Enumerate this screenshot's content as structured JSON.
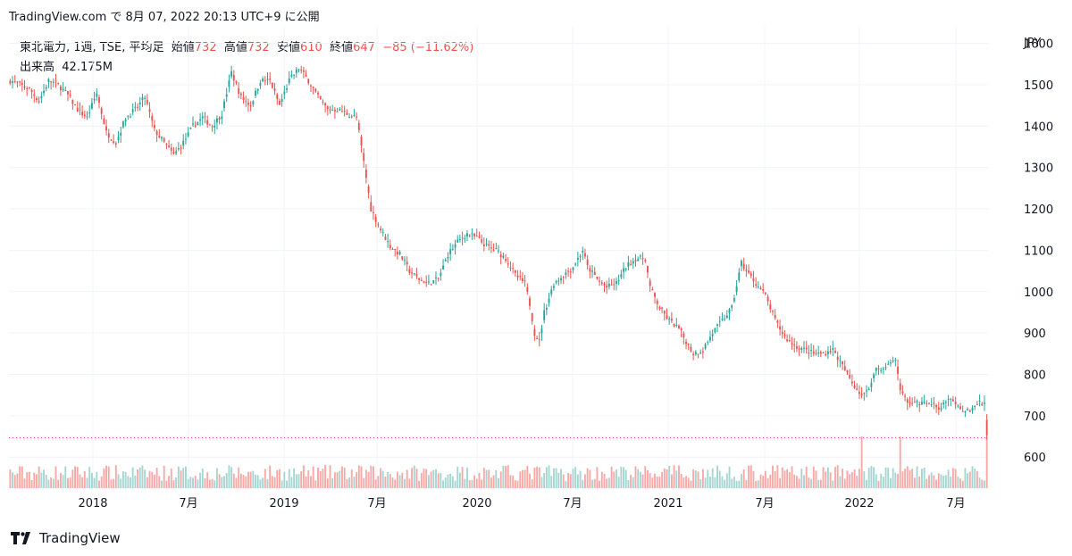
{
  "header": {
    "publish_line": "TradingView.com で 8月 07, 2022 20:13 UTC+9 に公開"
  },
  "legend": {
    "symbol": "東北電力, 1週, TSE, 平均足",
    "open_label": "始値",
    "open": "732",
    "high_label": "高値",
    "high": "732",
    "low_label": "安値",
    "low": "610",
    "close_label": "終値",
    "close": "647",
    "change": "−85 (−11.62%)",
    "volume_label": "出来高",
    "volume": "42.175M"
  },
  "footer": {
    "brand": "TradingView"
  },
  "colors": {
    "up": "#26a69a",
    "down": "#ef5350",
    "vol_up": "#a5d6d2",
    "vol_down": "#f7a9a7",
    "grid": "#f0f3fa",
    "axis_text": "#131722",
    "last_price_line": "#ef5350"
  },
  "chart_data": {
    "type": "candlestick",
    "currency": "JPY",
    "y_ticks": [
      600,
      700,
      800,
      900,
      1000,
      1100,
      1200,
      1300,
      1400,
      1500,
      1600
    ],
    "ylim": [
      525,
      1640
    ],
    "x_ticks": [
      "2018",
      "7月",
      "2019",
      "7月",
      "2020",
      "7月",
      "2021",
      "7月",
      "2022",
      "7月"
    ],
    "last_price": 647,
    "anchors": [
      [
        0,
        1510
      ],
      [
        8,
        1490
      ],
      [
        12,
        1460
      ],
      [
        16,
        1510
      ],
      [
        20,
        1500
      ],
      [
        24,
        1475
      ],
      [
        28,
        1440
      ],
      [
        32,
        1420
      ],
      [
        36,
        1480
      ],
      [
        40,
        1385
      ],
      [
        44,
        1360
      ],
      [
        48,
        1420
      ],
      [
        52,
        1440
      ],
      [
        56,
        1470
      ],
      [
        60,
        1390
      ],
      [
        64,
        1360
      ],
      [
        68,
        1330
      ],
      [
        72,
        1360
      ],
      [
        76,
        1400
      ],
      [
        80,
        1420
      ],
      [
        84,
        1400
      ],
      [
        88,
        1430
      ],
      [
        92,
        1530
      ],
      [
        96,
        1470
      ],
      [
        100,
        1450
      ],
      [
        104,
        1510
      ],
      [
        108,
        1510
      ],
      [
        112,
        1450
      ],
      [
        116,
        1510
      ],
      [
        120,
        1540
      ],
      [
        124,
        1510
      ],
      [
        128,
        1470
      ],
      [
        132,
        1440
      ],
      [
        136,
        1440
      ],
      [
        140,
        1430
      ],
      [
        144,
        1420
      ],
      [
        146,
        1350
      ],
      [
        150,
        1200
      ],
      [
        154,
        1150
      ],
      [
        158,
        1110
      ],
      [
        162,
        1090
      ],
      [
        166,
        1050
      ],
      [
        170,
        1030
      ],
      [
        174,
        1020
      ],
      [
        178,
        1030
      ],
      [
        182,
        1090
      ],
      [
        186,
        1120
      ],
      [
        190,
        1140
      ],
      [
        194,
        1130
      ],
      [
        198,
        1110
      ],
      [
        202,
        1100
      ],
      [
        206,
        1080
      ],
      [
        210,
        1040
      ],
      [
        214,
        1020
      ],
      [
        216,
        970
      ],
      [
        218,
        900
      ],
      [
        220,
        880
      ],
      [
        222,
        950
      ],
      [
        226,
        1020
      ],
      [
        230,
        1040
      ],
      [
        234,
        1060
      ],
      [
        238,
        1100
      ],
      [
        240,
        1060
      ],
      [
        244,
        1030
      ],
      [
        248,
        1010
      ],
      [
        252,
        1020
      ],
      [
        256,
        1060
      ],
      [
        260,
        1080
      ],
      [
        264,
        1080
      ],
      [
        266,
        1010
      ],
      [
        270,
        960
      ],
      [
        274,
        930
      ],
      [
        278,
        910
      ],
      [
        282,
        870
      ],
      [
        284,
        850
      ],
      [
        288,
        860
      ],
      [
        292,
        900
      ],
      [
        296,
        930
      ],
      [
        300,
        960
      ],
      [
        304,
        1070
      ],
      [
        306,
        1050
      ],
      [
        310,
        1020
      ],
      [
        314,
        990
      ],
      [
        318,
        930
      ],
      [
        322,
        890
      ],
      [
        326,
        870
      ],
      [
        330,
        860
      ],
      [
        334,
        850
      ],
      [
        338,
        850
      ],
      [
        342,
        860
      ],
      [
        346,
        820
      ],
      [
        350,
        780
      ],
      [
        354,
        750
      ],
      [
        357,
        770
      ],
      [
        360,
        810
      ],
      [
        364,
        820
      ],
      [
        368,
        830
      ],
      [
        370,
        760
      ],
      [
        374,
        730
      ],
      [
        378,
        730
      ],
      [
        382,
        730
      ],
      [
        386,
        720
      ],
      [
        390,
        740
      ],
      [
        394,
        720
      ],
      [
        398,
        710
      ],
      [
        402,
        730
      ],
      [
        405,
        730
      ],
      [
        406,
        647
      ]
    ],
    "volume_spikes": [
      [
        354,
        650
      ],
      [
        370,
        650
      ],
      [
        406,
        650
      ]
    ]
  }
}
